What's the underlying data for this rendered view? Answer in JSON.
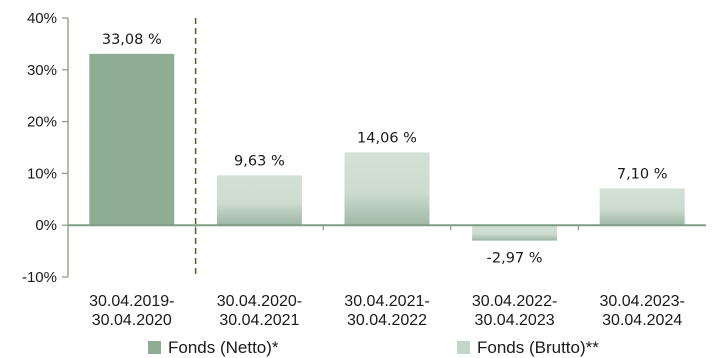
{
  "chart_data": {
    "type": "bar",
    "title": "",
    "xlabel": "",
    "ylabel": "",
    "ylim": [
      -10,
      40
    ],
    "y_ticks": [
      -10,
      0,
      10,
      20,
      30,
      40
    ],
    "y_tick_labels": [
      "-10%",
      "0%",
      "10%",
      "20%",
      "30%",
      "40%"
    ],
    "grid": false,
    "legend_position": "bottom",
    "categories": [
      [
        "30.04.2019-",
        "30.04.2020"
      ],
      [
        "30.04.2020-",
        "30.04.2021"
      ],
      [
        "30.04.2021-",
        "30.04.2022"
      ],
      [
        "30.04.2022-",
        "30.04.2023"
      ],
      [
        "30.04.2023-",
        "30.04.2024"
      ]
    ],
    "values": [
      33.08,
      9.63,
      14.06,
      -2.97,
      7.1
    ],
    "value_labels": [
      "33,08 %",
      "9,63 %",
      "14,06 %",
      "-2,97 %",
      "7,10 %"
    ],
    "bar_series_index": [
      0,
      1,
      1,
      1,
      1
    ],
    "series": [
      {
        "name": "Fonds (Netto)*",
        "color": "#8fac94"
      },
      {
        "name": "Fonds (Brutto)**",
        "color": "#c9d8cc"
      }
    ],
    "separator_after_category": 0,
    "separator_color": "#4d6b2a",
    "axis_color": "#7e9c86"
  }
}
